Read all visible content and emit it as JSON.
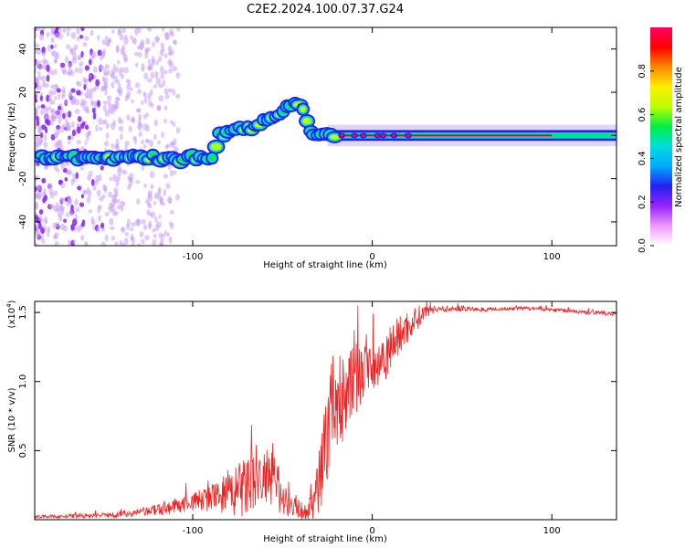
{
  "title": "C2E2.2024.100.07.37.G24",
  "colors": {
    "snr_line": "#ee2222",
    "signal_band": "#cc1111",
    "noise": "#8822ee"
  },
  "chart_data": [
    {
      "type": "heatmap",
      "name": "spectrogram",
      "xlabel": "Height of straight line (km)",
      "ylabel": "Frequency (Hz)",
      "xlim": [
        -188,
        136
      ],
      "ylim": [
        -51,
        50
      ],
      "xticks": [
        {
          "v": -100,
          "label": "-100"
        },
        {
          "v": 0,
          "label": "0"
        },
        {
          "v": 100,
          "label": "100"
        }
      ],
      "yticks": [
        {
          "v": 40,
          "label": "40"
        },
        {
          "v": 20,
          "label": "20"
        },
        {
          "v": 0,
          "label": "0"
        },
        {
          "v": -20,
          "label": "-20"
        },
        {
          "v": -40,
          "label": "-40"
        }
      ],
      "signal_track": [
        [
          -188,
          -10
        ],
        [
          -160,
          -11
        ],
        [
          -130,
          -10
        ],
        [
          -110,
          -11
        ],
        [
          -95,
          -10
        ],
        [
          -90,
          -12
        ],
        [
          -85,
          0
        ],
        [
          -75,
          3
        ],
        [
          -65,
          4
        ],
        [
          -55,
          9
        ],
        [
          -45,
          14
        ],
        [
          -40,
          14
        ],
        [
          -35,
          2
        ],
        [
          -25,
          0
        ],
        [
          0,
          0
        ],
        [
          136,
          0
        ]
      ],
      "colorbar": {
        "label": "Normalized spectral amplitude",
        "range": [
          0.0,
          1.0
        ],
        "ticks": [
          {
            "v": 0.0,
            "label": "0.0"
          },
          {
            "v": 0.2,
            "label": "0.2"
          },
          {
            "v": 0.4,
            "label": "0.4"
          },
          {
            "v": 0.6,
            "label": "0.6"
          },
          {
            "v": 0.8,
            "label": "0.8"
          }
        ],
        "colors": [
          "#ffffff",
          "#ee99ff",
          "#9922ff",
          "#2222ee",
          "#00aaff",
          "#00dddd",
          "#00ee44",
          "#bbff00",
          "#ffee00",
          "#ff8800",
          "#ff0000",
          "#ff0066"
        ]
      }
    },
    {
      "type": "line",
      "name": "snr",
      "xlabel": "Height of straight line (km)",
      "ylabel": "SNR (10 * v/v)",
      "scale_label": "(x10",
      "scale_exp": "4",
      "scale_close": ")",
      "xlim": [
        -188,
        136
      ],
      "ylim": [
        0,
        15800
      ],
      "xticks": [
        {
          "v": -100,
          "label": "-100"
        },
        {
          "v": 0,
          "label": "0"
        },
        {
          "v": 100,
          "label": "100"
        }
      ],
      "yticks": [
        {
          "v": 15000,
          "label": "1.5"
        },
        {
          "v": 10000,
          "label": "1.0"
        },
        {
          "v": 5000,
          "label": "0.5"
        }
      ],
      "envelope_x": [
        -188,
        -150,
        -130,
        -115,
        -100,
        -85,
        -75,
        -70,
        -62,
        -55,
        -50,
        -45,
        -38,
        -33,
        -28,
        -24,
        -22,
        -19,
        -15,
        -10,
        -5,
        0,
        5,
        10,
        15,
        20,
        25,
        30,
        35,
        40,
        50,
        60,
        80,
        100,
        120,
        136
      ],
      "envelope_y": [
        200,
        300,
        500,
        800,
        1300,
        1700,
        2000,
        2400,
        3000,
        2600,
        1800,
        1000,
        600,
        900,
        4000,
        7000,
        9000,
        8200,
        9300,
        10100,
        10800,
        11000,
        11600,
        12500,
        13300,
        14000,
        14600,
        15100,
        15300,
        15200,
        15300,
        15200,
        15300,
        15200,
        15000,
        14900
      ],
      "noise_amp": [
        100,
        200,
        300,
        500,
        700,
        1200,
        2000,
        2500,
        2500,
        2200,
        1500,
        800,
        600,
        1200,
        3000,
        3500,
        3500,
        3500,
        3200,
        2800,
        2400,
        2200,
        2000,
        1800,
        1500,
        1200,
        900,
        500,
        300,
        200,
        200,
        150,
        150,
        150,
        150,
        150
      ]
    }
  ]
}
